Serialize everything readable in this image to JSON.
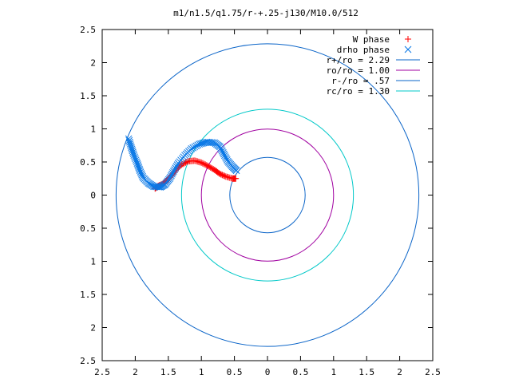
{
  "chart_data": {
    "type": "scatter",
    "title": "m1/n1.5/q1.75/r-+.25-j130/M10.0/512",
    "xlabel": "",
    "ylabel": "",
    "xlim": [
      -2.5,
      2.5
    ],
    "ylim": [
      -2.5,
      2.5
    ],
    "x_ticks": [
      -2.5,
      -2,
      -1.5,
      -1,
      -0.5,
      0,
      0.5,
      1,
      1.5,
      2,
      2.5
    ],
    "x_tick_labels": [
      "2.5",
      "2",
      "1.5",
      "1",
      "0.5",
      "0",
      "0.5",
      "1",
      "1.5",
      "2",
      "2.5"
    ],
    "y_ticks": [
      2.5,
      2,
      1.5,
      1,
      0.5,
      0,
      -0.5,
      -1,
      -1.5,
      -2,
      -2.5
    ],
    "y_tick_labels": [
      "2.5",
      "2",
      "1.5",
      "1",
      "0.5",
      "0",
      "0.5",
      "1",
      "1.5",
      "2",
      "2.5"
    ],
    "grid": false,
    "legend_position": "top-right",
    "circles": [
      {
        "name": "r+/ro = 2.29",
        "radius": 2.29,
        "color": "#0a64c8"
      },
      {
        "name": "ro/ro = 1.00",
        "radius": 1.0,
        "color": "#a000a0"
      },
      {
        "name": "r-/ro = .57",
        "radius": 0.57,
        "color": "#0a64c8"
      },
      {
        "name": "rc/ro = 1.30",
        "radius": 1.3,
        "color": "#00c8c8"
      }
    ],
    "series": [
      {
        "name": "W phase",
        "marker": "plus",
        "color": "#ff0000",
        "points": [
          [
            -1.7,
            0.1
          ],
          [
            -1.65,
            0.14
          ],
          [
            -1.58,
            0.17
          ],
          [
            -1.52,
            0.22
          ],
          [
            -1.45,
            0.3
          ],
          [
            -1.38,
            0.39
          ],
          [
            -1.3,
            0.46
          ],
          [
            -1.2,
            0.51
          ],
          [
            -1.1,
            0.52
          ],
          [
            -1.0,
            0.49
          ],
          [
            -0.9,
            0.44
          ],
          [
            -0.8,
            0.38
          ],
          [
            -0.72,
            0.32
          ],
          [
            -0.63,
            0.28
          ],
          [
            -0.53,
            0.25
          ],
          [
            -0.48,
            0.25
          ]
        ]
      },
      {
        "name": "drho phase",
        "marker": "x",
        "color": "#0a78e6",
        "points": [
          [
            -2.1,
            0.85
          ],
          [
            -2.06,
            0.72
          ],
          [
            -2.02,
            0.6
          ],
          [
            -1.97,
            0.48
          ],
          [
            -1.93,
            0.37
          ],
          [
            -1.88,
            0.26
          ],
          [
            -1.8,
            0.18
          ],
          [
            -1.72,
            0.13
          ],
          [
            -1.62,
            0.12
          ],
          [
            -1.55,
            0.16
          ],
          [
            -1.48,
            0.25
          ],
          [
            -1.42,
            0.36
          ],
          [
            -1.35,
            0.48
          ],
          [
            -1.25,
            0.6
          ],
          [
            -1.15,
            0.7
          ],
          [
            -1.03,
            0.77
          ],
          [
            -0.92,
            0.8
          ],
          [
            -0.8,
            0.79
          ],
          [
            -0.72,
            0.73
          ],
          [
            -0.66,
            0.62
          ],
          [
            -0.6,
            0.51
          ],
          [
            -0.53,
            0.43
          ],
          [
            -0.47,
            0.37
          ]
        ]
      }
    ]
  }
}
